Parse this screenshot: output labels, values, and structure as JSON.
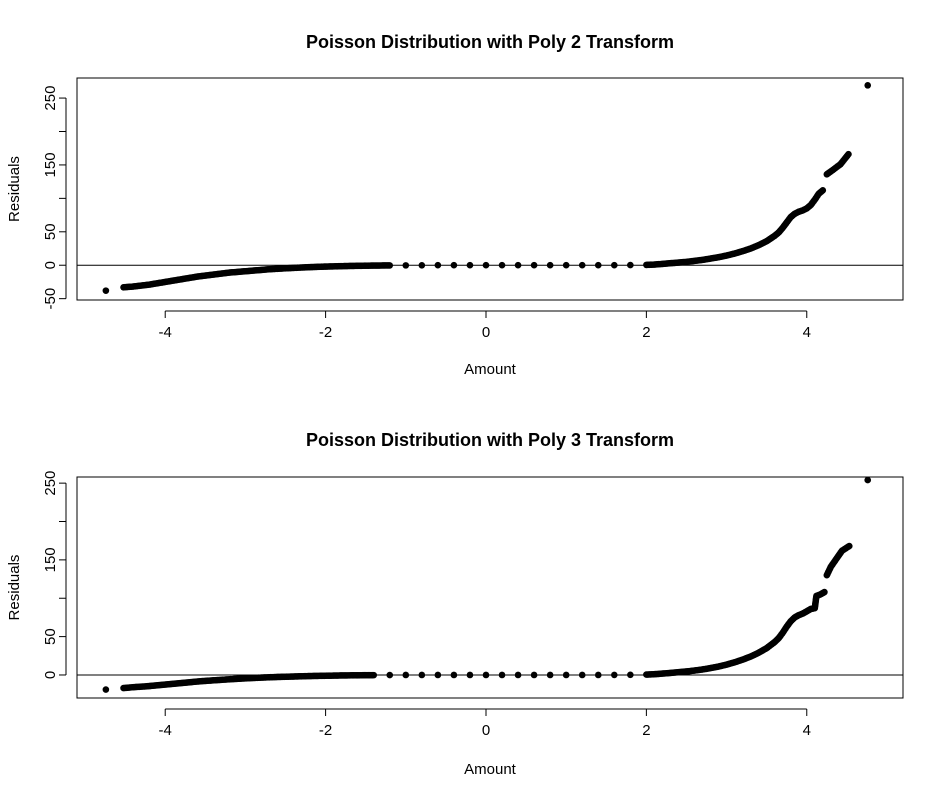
{
  "chart_data": [
    {
      "type": "scatter",
      "title": "Poisson Distribution with Poly 2 Transform",
      "xlabel": "Amount",
      "ylabel": "Residuals",
      "xlim": [
        -5.1,
        5.2
      ],
      "ylim": [
        -52,
        280
      ],
      "xticks": [
        -4,
        -2,
        0,
        2,
        4
      ],
      "xtick_labels": [
        "-4",
        "-2",
        "0",
        "2",
        "4"
      ],
      "yticks": [
        -50,
        0,
        50,
        150,
        250
      ],
      "ytick_labels": [
        "-50",
        "0",
        "50",
        "150",
        "250"
      ],
      "yticks_unlabeled": [
        100,
        200
      ],
      "hline": 0,
      "grid": false,
      "points": [
        [
          -4.74,
          -38
        ],
        [
          -4.52,
          -33
        ],
        [
          -4.41,
          -32
        ],
        [
          -4.34,
          -31
        ],
        [
          -4.27,
          -30
        ],
        [
          -4.2,
          -29
        ],
        [
          -4.1,
          -27
        ],
        [
          -4.0,
          -25
        ],
        [
          -3.9,
          -23
        ],
        [
          -3.8,
          -21
        ],
        [
          -3.7,
          -19
        ],
        [
          -3.6,
          -17
        ],
        [
          -3.5,
          -15.5
        ],
        [
          -3.4,
          -14
        ],
        [
          -3.3,
          -12.5
        ],
        [
          -3.2,
          -11
        ],
        [
          -3.1,
          -10
        ],
        [
          -3.0,
          -9
        ],
        [
          -2.9,
          -8
        ],
        [
          -2.8,
          -7
        ],
        [
          -2.7,
          -6
        ],
        [
          -2.6,
          -5.3
        ],
        [
          -2.5,
          -4.6
        ],
        [
          -2.4,
          -4
        ],
        [
          -2.3,
          -3.4
        ],
        [
          -2.2,
          -2.9
        ],
        [
          -2.1,
          -2.4
        ],
        [
          -2.0,
          -2
        ],
        [
          -1.9,
          -1.7
        ],
        [
          -1.8,
          -1.4
        ],
        [
          -1.7,
          -1.1
        ],
        [
          -1.6,
          -0.9
        ],
        [
          -1.5,
          -0.7
        ],
        [
          -1.4,
          -0.5
        ],
        [
          -1.3,
          -0.4
        ],
        [
          -1.2,
          -0.3
        ],
        [
          -1.0,
          -0.2
        ],
        [
          -0.8,
          -0.1
        ],
        [
          -0.6,
          0
        ],
        [
          -0.4,
          0
        ],
        [
          -0.2,
          0
        ],
        [
          0.0,
          0
        ],
        [
          0.2,
          0
        ],
        [
          0.4,
          0
        ],
        [
          0.6,
          0
        ],
        [
          0.8,
          0
        ],
        [
          1.0,
          0
        ],
        [
          1.2,
          0
        ],
        [
          1.4,
          0
        ],
        [
          1.6,
          0.1
        ],
        [
          1.8,
          0.2
        ],
        [
          2.0,
          0.5
        ],
        [
          2.1,
          1
        ],
        [
          2.2,
          2
        ],
        [
          2.3,
          3
        ],
        [
          2.4,
          4
        ],
        [
          2.5,
          5
        ],
        [
          2.6,
          6.5
        ],
        [
          2.7,
          8
        ],
        [
          2.8,
          10
        ],
        [
          2.9,
          12
        ],
        [
          3.0,
          14.5
        ],
        [
          3.1,
          17.5
        ],
        [
          3.2,
          21
        ],
        [
          3.3,
          25
        ],
        [
          3.4,
          30
        ],
        [
          3.5,
          36
        ],
        [
          3.55,
          40
        ],
        [
          3.6,
          44
        ],
        [
          3.65,
          49
        ],
        [
          3.7,
          56
        ],
        [
          3.75,
          64
        ],
        [
          3.8,
          72
        ],
        [
          3.85,
          77
        ],
        [
          3.9,
          80
        ],
        [
          3.95,
          82
        ],
        [
          4.0,
          85
        ],
        [
          4.05,
          90
        ],
        [
          4.1,
          98
        ],
        [
          4.15,
          107
        ],
        [
          4.2,
          112
        ],
        [
          4.25,
          136
        ],
        [
          4.32,
          142
        ],
        [
          4.42,
          151
        ],
        [
          4.52,
          166
        ],
        [
          4.76,
          269
        ]
      ]
    },
    {
      "type": "scatter",
      "title": "Poisson Distribution with Poly 3 Transform",
      "xlabel": "Amount",
      "ylabel": "Residuals",
      "xlim": [
        -5.1,
        5.2
      ],
      "ylim": [
        -30,
        258
      ],
      "xticks": [
        -4,
        -2,
        0,
        2,
        4
      ],
      "xtick_labels": [
        "-4",
        "-2",
        "0",
        "2",
        "4"
      ],
      "yticks": [
        0,
        50,
        150,
        250
      ],
      "ytick_labels": [
        "0",
        "50",
        "150",
        "250"
      ],
      "yticks_unlabeled": [
        100,
        200
      ],
      "hline": 0,
      "grid": false,
      "points": [
        [
          -4.74,
          -19
        ],
        [
          -4.52,
          -17
        ],
        [
          -4.41,
          -16
        ],
        [
          -4.34,
          -15.5
        ],
        [
          -4.27,
          -15
        ],
        [
          -4.2,
          -14.5
        ],
        [
          -4.1,
          -13.5
        ],
        [
          -4.0,
          -12.5
        ],
        [
          -3.9,
          -11.5
        ],
        [
          -3.8,
          -10.5
        ],
        [
          -3.7,
          -9.5
        ],
        [
          -3.6,
          -8.5
        ],
        [
          -3.5,
          -7.7
        ],
        [
          -3.4,
          -7
        ],
        [
          -3.3,
          -6.3
        ],
        [
          -3.2,
          -5.6
        ],
        [
          -3.1,
          -5
        ],
        [
          -3.0,
          -4.4
        ],
        [
          -2.9,
          -3.9
        ],
        [
          -2.8,
          -3.4
        ],
        [
          -2.7,
          -3
        ],
        [
          -2.6,
          -2.6
        ],
        [
          -2.5,
          -2.3
        ],
        [
          -2.4,
          -2
        ],
        [
          -2.3,
          -1.7
        ],
        [
          -2.2,
          -1.4
        ],
        [
          -2.1,
          -1.2
        ],
        [
          -2.0,
          -1
        ],
        [
          -1.9,
          -0.8
        ],
        [
          -1.8,
          -0.6
        ],
        [
          -1.7,
          -0.5
        ],
        [
          -1.6,
          -0.4
        ],
        [
          -1.5,
          -0.3
        ],
        [
          -1.4,
          -0.2
        ],
        [
          -1.2,
          -0.1
        ],
        [
          -1.0,
          0
        ],
        [
          -0.8,
          0
        ],
        [
          -0.6,
          0
        ],
        [
          -0.4,
          0
        ],
        [
          -0.2,
          0
        ],
        [
          0.0,
          0
        ],
        [
          0.2,
          0
        ],
        [
          0.4,
          0
        ],
        [
          0.6,
          0
        ],
        [
          0.8,
          0
        ],
        [
          1.0,
          0
        ],
        [
          1.2,
          0
        ],
        [
          1.4,
          0
        ],
        [
          1.6,
          0.1
        ],
        [
          1.8,
          0.2
        ],
        [
          2.0,
          0.5
        ],
        [
          2.1,
          1
        ],
        [
          2.2,
          1.8
        ],
        [
          2.3,
          2.7
        ],
        [
          2.4,
          3.6
        ],
        [
          2.5,
          4.6
        ],
        [
          2.6,
          5.8
        ],
        [
          2.7,
          7.2
        ],
        [
          2.8,
          9
        ],
        [
          2.9,
          11
        ],
        [
          3.0,
          13.5
        ],
        [
          3.1,
          16.5
        ],
        [
          3.2,
          20
        ],
        [
          3.3,
          24
        ],
        [
          3.4,
          29
        ],
        [
          3.5,
          35
        ],
        [
          3.55,
          39
        ],
        [
          3.6,
          43
        ],
        [
          3.65,
          48
        ],
        [
          3.7,
          55
        ],
        [
          3.75,
          63
        ],
        [
          3.8,
          70
        ],
        [
          3.85,
          75
        ],
        [
          3.9,
          78
        ],
        [
          3.95,
          80
        ],
        [
          4.0,
          83
        ],
        [
          4.05,
          86
        ],
        [
          4.1,
          87
        ],
        [
          4.12,
          103
        ],
        [
          4.17,
          105
        ],
        [
          4.22,
          108
        ],
        [
          4.25,
          130
        ],
        [
          4.3,
          141
        ],
        [
          4.36,
          150
        ],
        [
          4.44,
          162
        ],
        [
          4.53,
          168
        ],
        [
          4.76,
          254
        ]
      ]
    }
  ]
}
